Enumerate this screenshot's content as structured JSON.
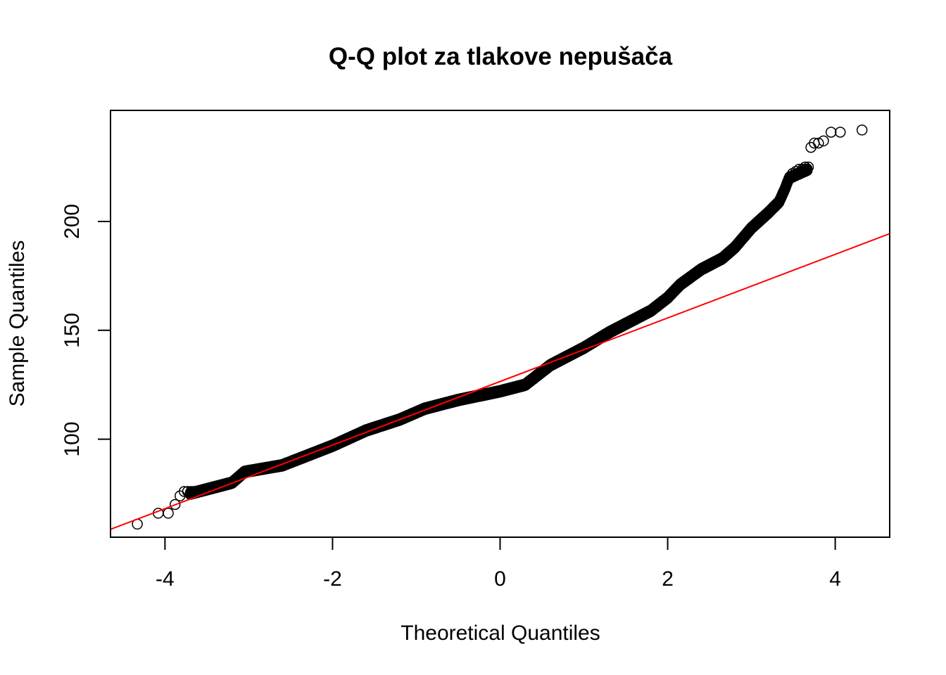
{
  "chart_data": {
    "type": "scatter",
    "title": "Q-Q plot za tlakove nepušača",
    "xlabel": "Theoretical Quantiles",
    "ylabel": "Sample Quantiles",
    "xlim": [
      -4.65,
      4.65
    ],
    "ylim": [
      55,
      251
    ],
    "x_ticks": [
      -4,
      -2,
      0,
      2,
      4
    ],
    "x_tick_labels": [
      "-4",
      "-2",
      "0",
      "2",
      "4"
    ],
    "y_ticks": [
      100,
      150,
      200
    ],
    "y_tick_labels": [
      "100",
      "150",
      "200"
    ],
    "grid": false,
    "colors": {
      "points": "#000000",
      "reference_line": "#ff0000"
    },
    "reference_line": {
      "intercept": 126.5,
      "slope": 14.6
    },
    "curve_anchors": {
      "x": [
        -3.7,
        -3.5,
        -3.2,
        -3.05,
        -2.6,
        -2.2,
        -2.0,
        -1.6,
        -1.2,
        -0.9,
        -0.5,
        0.0,
        0.3,
        0.6,
        1.0,
        1.3,
        1.8,
        2.0,
        2.15,
        2.4,
        2.65,
        2.8,
        3.0,
        3.2,
        3.33,
        3.4,
        3.45,
        3.68
      ],
      "y": [
        75,
        77,
        80,
        85,
        88,
        94,
        97,
        104,
        109,
        114,
        118,
        122,
        125,
        134,
        142,
        149,
        159,
        165,
        171,
        178,
        183,
        188,
        197,
        204,
        209,
        215,
        220,
        224
      ]
    },
    "outlier_points": [
      {
        "x": -4.33,
        "y": 61
      },
      {
        "x": -4.08,
        "y": 66
      },
      {
        "x": -3.96,
        "y": 66
      },
      {
        "x": -3.88,
        "y": 70
      },
      {
        "x": -3.82,
        "y": 74
      },
      {
        "x": -3.77,
        "y": 76
      },
      {
        "x": -3.73,
        "y": 76
      },
      {
        "x": -3.69,
        "y": 76
      },
      {
        "x": -3.66,
        "y": 76
      },
      {
        "x": -3.63,
        "y": 76
      },
      {
        "x": 3.49,
        "y": 222
      },
      {
        "x": 3.53,
        "y": 223
      },
      {
        "x": 3.57,
        "y": 224
      },
      {
        "x": 3.61,
        "y": 224
      },
      {
        "x": 3.64,
        "y": 225
      },
      {
        "x": 3.68,
        "y": 225
      },
      {
        "x": 3.71,
        "y": 234
      },
      {
        "x": 3.75,
        "y": 236
      },
      {
        "x": 3.8,
        "y": 236
      },
      {
        "x": 3.86,
        "y": 237
      },
      {
        "x": 3.95,
        "y": 241
      },
      {
        "x": 4.06,
        "y": 241
      },
      {
        "x": 4.32,
        "y": 242
      }
    ]
  }
}
